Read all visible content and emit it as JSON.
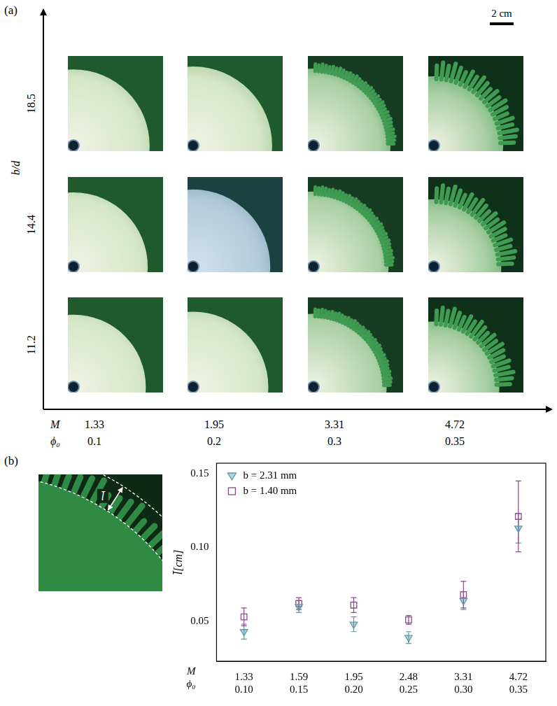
{
  "panel_a": {
    "label": "(a)",
    "y_label": "b/d",
    "y_values": [
      "18.5",
      "14.4",
      "11.2"
    ],
    "x_rows": [
      {
        "name": "M",
        "values": [
          "1.33",
          "1.95",
          "3.31",
          "4.72"
        ]
      },
      {
        "name": "ϕ₀",
        "values": [
          "0.1",
          "0.2",
          "0.3",
          "0.35"
        ]
      }
    ],
    "scale_bar": "2 cm"
  },
  "chart_data": {
    "panel_label": "(b)",
    "inset_label": "l̄",
    "type": "scatter",
    "y_label": "l̄[cm]",
    "categories": [
      [
        "1.33",
        "0.10"
      ],
      [
        "1.59",
        "0.15"
      ],
      [
        "1.95",
        "0.20"
      ],
      [
        "2.48",
        "0.25"
      ],
      [
        "3.31",
        "0.30"
      ],
      [
        "4.72",
        "0.35"
      ]
    ],
    "category_rows": [
      "M",
      "ϕ₀"
    ],
    "ylim": [
      0.023,
      0.157
    ],
    "yticks": [
      0.05,
      {
        "value": 0.1,
        "label": "0.10"
      },
      0.15
    ],
    "grid": false,
    "legend": "upper left",
    "series": [
      {
        "name": "b = 2.31 mm",
        "color": "#5b9aa8",
        "marker": "triangle_down",
        "values": [
          0.043,
          0.06,
          0.048,
          0.039,
          0.064,
          0.113
        ],
        "errors": [
          0.005,
          0.004,
          0.005,
          0.004,
          0.006,
          0.01
        ]
      },
      {
        "name": "b = 1.40 mm",
        "color": "#8b4a8b",
        "marker": "square",
        "values": [
          0.053,
          0.062,
          0.061,
          0.051,
          0.068,
          0.121
        ],
        "errors": [
          0.006,
          0.004,
          0.005,
          0.003,
          0.009,
          0.024
        ]
      }
    ]
  }
}
